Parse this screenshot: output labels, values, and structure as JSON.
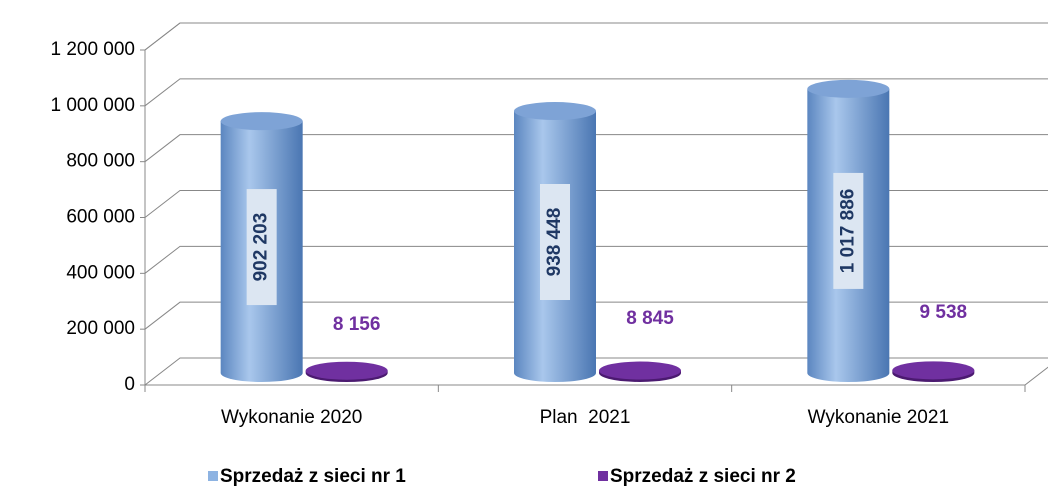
{
  "chart_data": {
    "type": "bar3d",
    "categories": [
      "Wykonanie 2020",
      "Plan  2021",
      "Wykonanie 2021"
    ],
    "series": [
      {
        "name": "Sprzedaż z sieci nr 1",
        "color": "#8db3e2",
        "values": [
          902203,
          938448,
          1017886
        ],
        "value_labels": [
          "902 203",
          "938 448",
          "1 017 886"
        ]
      },
      {
        "name": "Sprzedaż z sieci nr 2",
        "color": "#7030a0",
        "values": [
          8156,
          8845,
          9538
        ],
        "value_labels": [
          "8 156",
          "8 845",
          "9 538"
        ]
      }
    ],
    "ylim": [
      0,
      1200000
    ],
    "yticks": [
      0,
      {
        "value": 200000,
        "label": "200 000"
      },
      {
        "value": 400000,
        "label": "400 000"
      },
      {
        "value": 600000,
        "label": "600 000"
      },
      {
        "value": 800000,
        "label": "800 000"
      },
      {
        "value": 1000000,
        "label": "1 000 000"
      },
      {
        "value": 1200000,
        "label": "1 200 000"
      }
    ],
    "grid": true,
    "legend": "bottom"
  }
}
